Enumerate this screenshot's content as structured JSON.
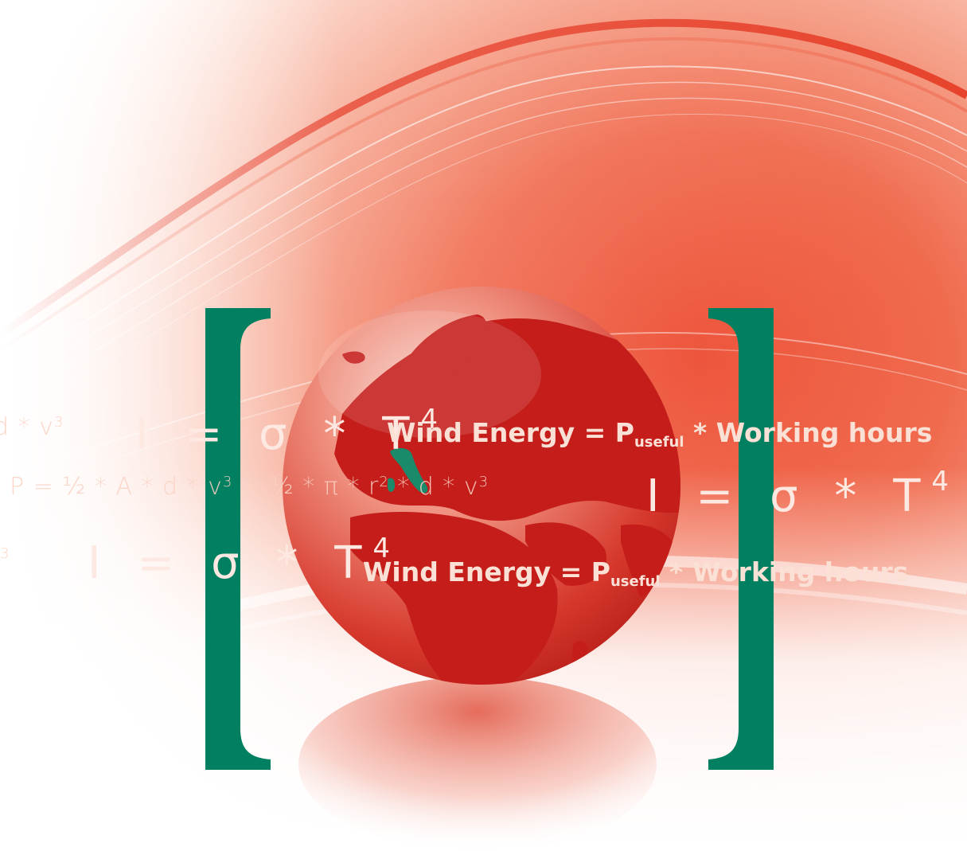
{
  "colors": {
    "background": "#ffffff",
    "wave_red": "#e8442c",
    "globe_red": "#c8201c",
    "bracket_green": "#008061",
    "italy_green": "#1a8a6b",
    "formula_text": "#fde3da"
  },
  "formulas": {
    "row1_left": {
      "base": "d * v",
      "sup": "3"
    },
    "row1_sigma": {
      "lhs": "I",
      "eq": "=",
      "sigma": "σ",
      "star": "*",
      "t": "T",
      "exp": "4"
    },
    "row1_wind": {
      "lhs": "Wind Energy = P",
      "sub": "useful",
      "rhs": "* Working hours"
    },
    "row2_power": {
      "a": "P = ½  * A * d * v",
      "sup1": "3",
      "b": " = ½  * π * r",
      "sup2": "2",
      "c": " * d * v",
      "sup3": "3"
    },
    "row2_sigma": {
      "lhs": "I",
      "eq": "=",
      "sigma": "σ",
      "star": "*",
      "t": "T",
      "exp": "4"
    },
    "row3_left": {
      "sup": "3"
    },
    "row3_sigma": {
      "lhs": "I",
      "eq": "=",
      "sigma": "σ",
      "star": "*",
      "t": "T",
      "exp": "4"
    },
    "row3_wind": {
      "lhs": "Wind Energy = P",
      "sub": "useful",
      "rhs": "* Working hours"
    }
  },
  "icons": [
    "globe-icon",
    "left-bracket-icon",
    "right-bracket-icon",
    "italy-highlight-icon"
  ]
}
